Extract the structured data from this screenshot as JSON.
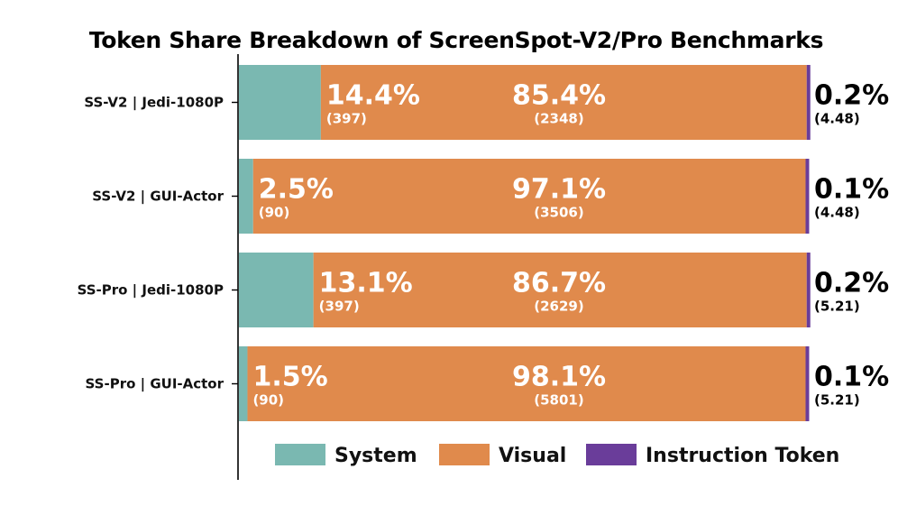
{
  "chart_data": {
    "type": "bar",
    "orientation": "horizontal",
    "stacked": true,
    "title": "Token Share Breakdown of ScreenSpot-V2/Pro Benchmarks",
    "categories": [
      "SS-V2 | Jedi-1080P",
      "SS-V2 | GUI-Actor",
      "SS-Pro | Jedi-1080P",
      "SS-Pro | GUI-Actor"
    ],
    "series": [
      {
        "name": "System",
        "color": "#7ab8b1",
        "values": [
          14.4,
          2.5,
          13.1,
          1.5
        ],
        "labels": [
          "14.4%",
          "2.5%",
          "13.1%",
          "1.5%"
        ],
        "counts": [
          "(397)",
          "(90)",
          "(397)",
          "(90)"
        ]
      },
      {
        "name": "Visual",
        "color": "#e08a4c",
        "values": [
          85.4,
          97.1,
          86.7,
          98.1
        ],
        "labels": [
          "85.4%",
          "97.1%",
          "86.7%",
          "98.1%"
        ],
        "counts": [
          "(2348)",
          "(3506)",
          "(2629)",
          "(5801)"
        ]
      },
      {
        "name": "Instruction Token",
        "color": "#6a3d9a",
        "values": [
          0.2,
          0.1,
          0.2,
          0.1
        ],
        "labels": [
          "0.2%",
          "0.1%",
          "0.2%",
          "0.1%"
        ],
        "counts": [
          "(4.48)",
          "(4.48)",
          "(5.21)",
          "(5.21)"
        ]
      }
    ],
    "xlim": [
      0,
      100
    ],
    "xlabel": "",
    "ylabel": "",
    "grid": false,
    "legend": "bottom-right"
  }
}
